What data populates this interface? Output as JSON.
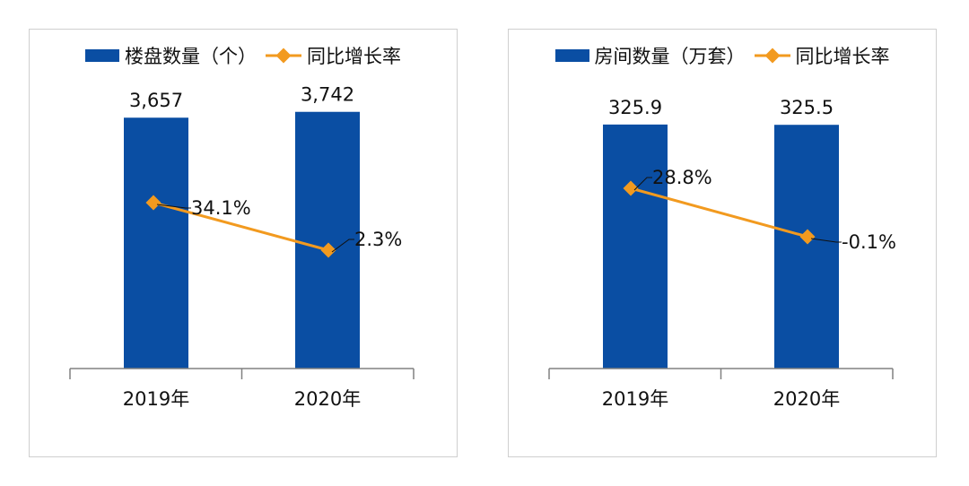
{
  "colors": {
    "bar": "#0a4ea3",
    "line": "#f29a1f",
    "axis": "#808080",
    "border": "#cfcfcf"
  },
  "chart_data": [
    {
      "type": "bar",
      "categories": [
        "2019年",
        "2020年"
      ],
      "series": [
        {
          "name": "楼盘数量（个）",
          "kind": "bar",
          "values": [
            3657,
            3742
          ],
          "labels": [
            "3,657",
            "3,742"
          ]
        },
        {
          "name": "同比增长率",
          "kind": "line",
          "values": [
            34.1,
            2.3
          ],
          "labels": [
            "34.1%",
            "2.3%"
          ]
        }
      ],
      "legend_position": "top",
      "grid": false
    },
    {
      "type": "bar",
      "categories": [
        "2019年",
        "2020年"
      ],
      "series": [
        {
          "name": "房间数量（万套）",
          "kind": "bar",
          "values": [
            325.9,
            325.5
          ],
          "labels": [
            "325.9",
            "325.5"
          ]
        },
        {
          "name": "同比增长率",
          "kind": "line",
          "values": [
            28.8,
            -0.1
          ],
          "labels": [
            "28.8%",
            "-0.1%"
          ]
        }
      ],
      "legend_position": "top",
      "grid": false
    }
  ]
}
